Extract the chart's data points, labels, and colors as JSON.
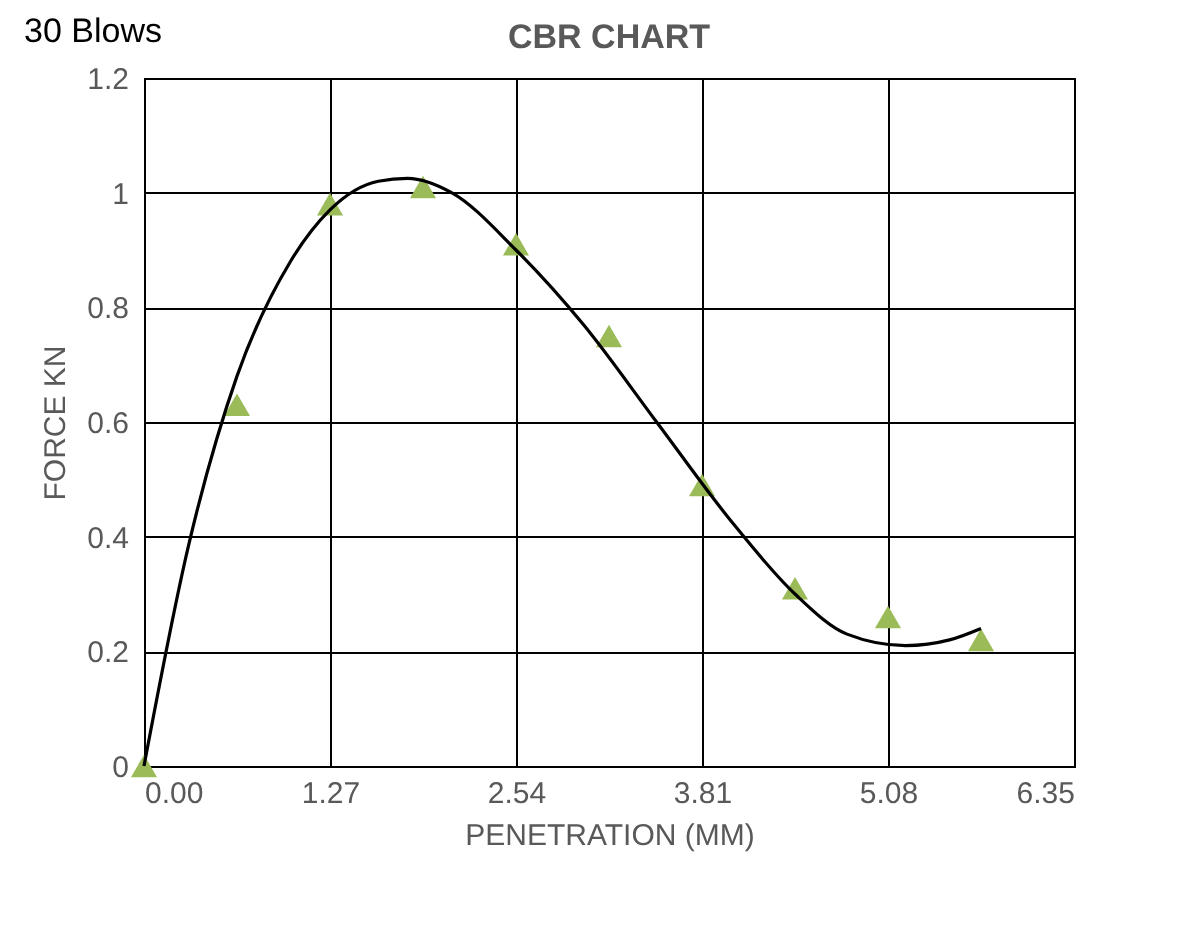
{
  "chart_data": {
    "type": "scatter",
    "title": "CBR CHART",
    "xlabel": "PENETRATION (MM)",
    "ylabel": "FORCE KN",
    "annotations": [
      "30 Blows"
    ],
    "xlim": [
      0,
      6.35
    ],
    "ylim": [
      0,
      1.2
    ],
    "xticks": [
      {
        "value": 0,
        "label": "0.00"
      },
      {
        "value": 1.27,
        "label": "1.27"
      },
      {
        "value": 2.54,
        "label": "2.54"
      },
      {
        "value": 3.81,
        "label": "3.81"
      },
      {
        "value": 5.08,
        "label": "5.08"
      },
      {
        "value": 6.35,
        "label": "6.35"
      }
    ],
    "yticks": [
      0,
      0.2,
      0.4,
      0.6,
      0.8,
      1,
      1.2
    ],
    "grid": true,
    "marker": "triangle",
    "series": [
      {
        "color": "#9bbb59",
        "x": [
          0,
          0.635,
          1.27,
          1.905,
          2.54,
          3.175,
          3.81,
          4.445,
          5.08,
          5.715
        ],
        "values": [
          0,
          0.63,
          0.98,
          1.01,
          0.91,
          0.75,
          0.49,
          0.31,
          0.26,
          0.22
        ]
      },
      {
        "type": "line",
        "color": "#000000",
        "marker": "none",
        "x": [
          0,
          0.3,
          0.635,
          1.0,
          1.27,
          1.6,
          1.8,
          2.1,
          2.54,
          3.0,
          3.5,
          4.0,
          4.445,
          4.8,
          5.2,
          5.5,
          5.715
        ],
        "values": [
          0,
          0.38,
          0.68,
          0.88,
          0.97,
          1.02,
          1.025,
          1.0,
          0.9,
          0.77,
          0.6,
          0.43,
          0.3,
          0.23,
          0.21,
          0.22,
          0.24
        ]
      }
    ]
  }
}
